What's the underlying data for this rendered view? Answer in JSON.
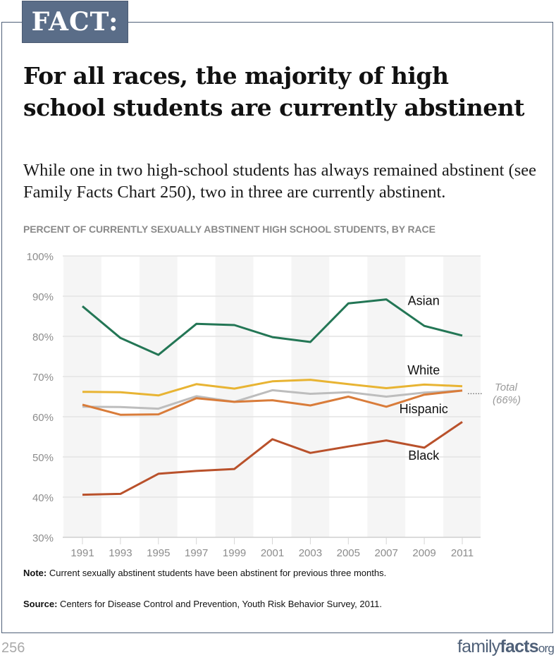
{
  "badge": "FACT:",
  "headline": "For all races, the majority of high school students are currently abstinent",
  "subhead": "While one in two high-school students has always remained abstinent (see Family Facts Chart 250), two in three are currently abstinent.",
  "note": {
    "label": "Note:",
    "text": " Current sexually abstinent students have been abstinent for previous three months."
  },
  "source": {
    "label": "Source:",
    "text": " Centers for Disease Control and Prevention, Youth Risk Behavior Survey, 2011."
  },
  "page_number": "256",
  "logo": {
    "part1": "family",
    "part2": "facts",
    "part3": "org"
  },
  "chart_data": {
    "type": "line",
    "title": "PERCENT OF CURRENTLY SEXUALLY ABSTINENT HIGH SCHOOL STUDENTS, BY RACE",
    "xlabel": "",
    "ylabel": "",
    "x": [
      "1991",
      "1993",
      "1995",
      "1997",
      "1999",
      "2001",
      "2003",
      "2005",
      "2007",
      "2009",
      "2011"
    ],
    "ylim": [
      30,
      100
    ],
    "yticks": [
      30,
      40,
      50,
      60,
      70,
      80,
      90,
      100
    ],
    "ytick_labels": [
      "30%",
      "40%",
      "50%",
      "60%",
      "70%",
      "80%",
      "90%",
      "100%"
    ],
    "grid": true,
    "series": [
      {
        "name": "Asian",
        "color": "#237655",
        "label_year_index": 8.0,
        "label_value": 87.8,
        "values": [
          87.5,
          79.6,
          75.4,
          83.1,
          82.8,
          79.8,
          78.6,
          88.2,
          89.2,
          82.6,
          80.2
        ]
      },
      {
        "name": "White",
        "color": "#e8b433",
        "label_year_index": 8.0,
        "label_value": 70.5,
        "values": [
          66.2,
          66.1,
          65.3,
          68.1,
          67.0,
          68.8,
          69.2,
          68.1,
          67.1,
          68.0,
          67.6
        ]
      },
      {
        "name": "Total",
        "color": "#bdbdbd",
        "label_year_index": null,
        "label_value": null,
        "values": [
          62.5,
          62.4,
          62.0,
          65.1,
          63.7,
          66.6,
          65.7,
          66.1,
          65.0,
          66.0,
          66.5
        ]
      },
      {
        "name": "Hispanic",
        "color": "#d97c3a",
        "label_year_index": 8.0,
        "label_value": 60.9,
        "values": [
          63.0,
          60.5,
          60.6,
          64.6,
          63.7,
          64.1,
          62.8,
          65.0,
          62.5,
          65.5,
          66.5
        ]
      },
      {
        "name": "Black",
        "color": "#b9512b",
        "label_year_index": 8.0,
        "label_value": 49.3,
        "values": [
          40.6,
          40.8,
          45.8,
          46.5,
          47.0,
          54.4,
          51.0,
          52.6,
          54.1,
          52.3,
          58.7
        ]
      }
    ],
    "annotation": {
      "text_line1": "Total",
      "text_line2": "(66%)",
      "leader": "......",
      "value": 66
    }
  }
}
